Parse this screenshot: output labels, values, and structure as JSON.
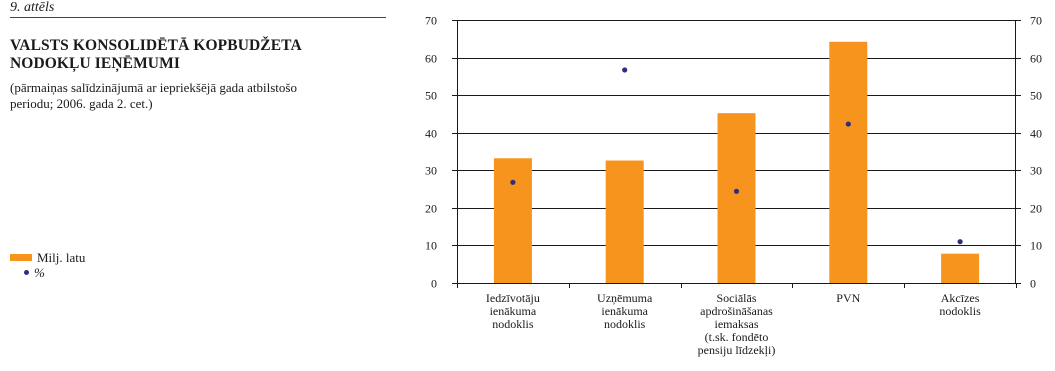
{
  "figure": {
    "label": "9. attēls",
    "title_line1": "VALSTS KONSOLIDĒTĀ KOPBUDŽETA",
    "title_line2": "NODOKĻU IEŅĒMUMI",
    "subtitle_line1": "(pārmaiņas salīdzinājumā ar iepriekšējā gada atbilstošo",
    "subtitle_line2": "periodu; 2006. gada 2. cet.)"
  },
  "legend": {
    "items": [
      {
        "label": "Milj. latu",
        "kind": "bar"
      },
      {
        "label": "%",
        "kind": "dot"
      }
    ]
  },
  "colors": {
    "bar": "#f7941d",
    "dot": "#2b2f7e",
    "grid": "#1a1a1a"
  },
  "chart_data": {
    "type": "bar",
    "categories": [
      [
        "Iedzīvotāju",
        "ienākuma",
        "nodoklis"
      ],
      [
        "Uzņēmuma",
        "ienākuma",
        "nodoklis"
      ],
      [
        "Sociālās",
        "apdrošināšanas",
        "iemaksas",
        "(t.sk. fondēto",
        "pensiju līdzekļi)"
      ],
      [
        "PVN"
      ],
      [
        "Akcīzes",
        "nodoklis"
      ]
    ],
    "series": [
      {
        "name": "Milj. latu",
        "type": "bar",
        "axis": "left",
        "values": [
          33.2,
          32.6,
          45.2,
          64.2,
          7.8
        ]
      },
      {
        "name": "%",
        "type": "scatter",
        "axis": "right",
        "values": [
          26.8,
          56.7,
          24.4,
          42.3,
          11.0
        ]
      }
    ],
    "ylim": [
      0,
      70
    ],
    "y_ticks": [
      0,
      10,
      20,
      30,
      40,
      50,
      60,
      70
    ],
    "y2lim": [
      0,
      70
    ],
    "y2_ticks": [
      0,
      10,
      20,
      30,
      40,
      50,
      60,
      70
    ],
    "grid": true,
    "legend_position": "left"
  }
}
